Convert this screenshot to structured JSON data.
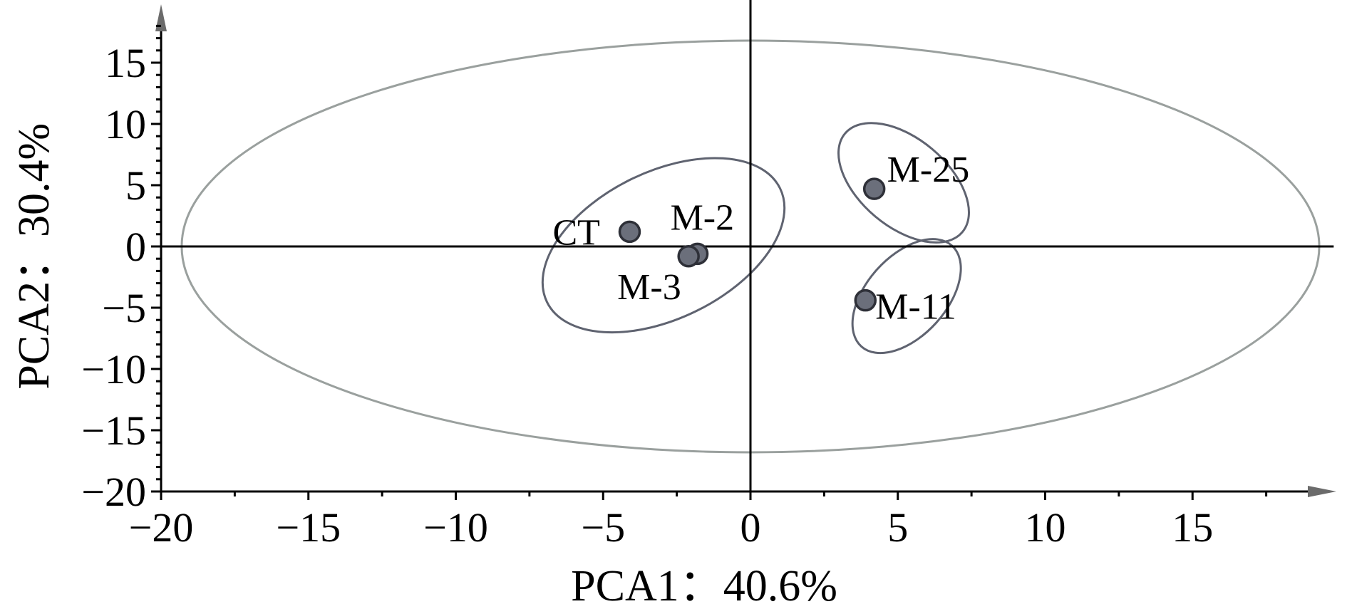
{
  "chart_data": {
    "type": "scatter",
    "title": "",
    "xlabel": "PCA1：40.6%",
    "ylabel": "PCA2：30.4%",
    "xlim": [
      -20,
      19.5
    ],
    "ylim": [
      -20,
      19.5
    ],
    "x_ticks": [
      -20,
      -15,
      -10,
      -5,
      0,
      5,
      10,
      15
    ],
    "y_ticks": [
      -20,
      -15,
      -10,
      -5,
      0,
      5,
      10,
      15
    ],
    "x_tick_labels": [
      "−20",
      "−15",
      "−10",
      "−5",
      "0",
      "5",
      "10",
      "15"
    ],
    "y_tick_labels": [
      "−20",
      "−15",
      "−10",
      "−5",
      "0",
      "5",
      "10",
      "15"
    ],
    "grid": false,
    "legend": "none",
    "colors": {
      "point_fill": "#6b6f7b",
      "point_stroke": "#2e3038",
      "group_ellipse": "#5f6370",
      "confidence_ellipse": "#9aa09e",
      "axis": "#000000"
    },
    "points": [
      {
        "label": "CT",
        "x": -4.1,
        "y": 1.2
      },
      {
        "label": "M-2",
        "x": -1.8,
        "y": -0.6
      },
      {
        "label": "M-3",
        "x": -2.1,
        "y": -0.8
      },
      {
        "label": "M-25",
        "x": 4.2,
        "y": 4.7
      },
      {
        "label": "M-11",
        "x": 3.9,
        "y": -4.4
      }
    ],
    "confidence_ellipse": {
      "cx": 0,
      "cy": 0,
      "rx": 19.3,
      "ry": 16.8,
      "angle": 0
    },
    "group_ellipses": [
      {
        "members": [
          "CT",
          "M-2",
          "M-3"
        ],
        "cx": -2.95,
        "cy": 0.1,
        "rx": 4.4,
        "ry": 6.0,
        "angle": -26
      },
      {
        "members": [
          "M-25"
        ],
        "cx": 5.2,
        "cy": 5.2,
        "rx": 2.6,
        "ry": 3.6,
        "angle": 40
      },
      {
        "members": [
          "M-11"
        ],
        "cx": 5.3,
        "cy": -4.05,
        "rx": 2.3,
        "ry": 3.25,
        "angle": -48
      }
    ]
  }
}
